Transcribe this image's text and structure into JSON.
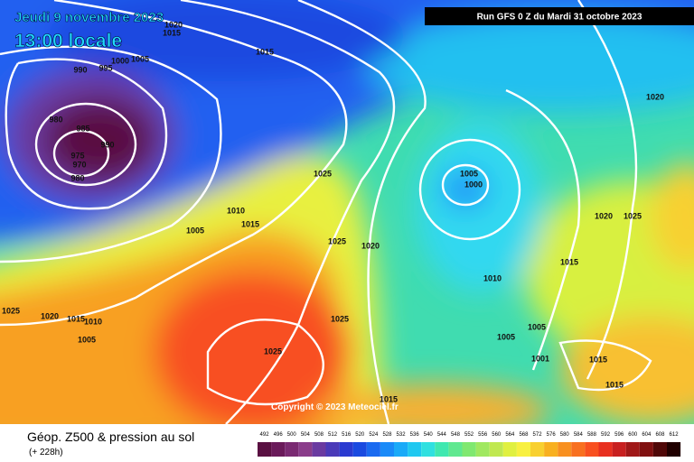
{
  "header": {
    "date": "Jeudi 9 novembre 2023",
    "time": "13:00 locale",
    "run": "Run GFS 0 Z du Mardi 31 octobre 2023"
  },
  "copyright": "Copyright © 2023 Meteociel.fr",
  "footer": {
    "title": "Géop. Z500 & pression au sol",
    "lead": "(+ 228h)"
  },
  "isobar_labels": [
    1020,
    1015,
    990,
    995,
    1000,
    1005,
    1015,
    980,
    985,
    990,
    975,
    970,
    980,
    1025,
    1010,
    1015,
    1005,
    1025,
    1020,
    1005,
    1000,
    1020,
    1020,
    1025,
    1015,
    1010,
    1025,
    1020,
    1015,
    1010,
    1005,
    1025,
    1025,
    1005,
    1005,
    1001,
    1015,
    1015,
    1015
  ],
  "legend": {
    "labels": [
      492,
      496,
      500,
      504,
      508,
      512,
      516,
      520,
      524,
      528,
      532,
      536,
      540,
      544,
      548,
      552,
      556,
      560,
      564,
      568,
      572,
      576,
      580,
      584,
      588,
      592,
      596,
      600,
      604,
      608,
      612
    ],
    "colors": [
      "#5a1042",
      "#6a1a5a",
      "#7a2a72",
      "#8a3c8a",
      "#6a3aa0",
      "#4a3ab8",
      "#2a3ad0",
      "#1a4ae0",
      "#1a6af0",
      "#1a8af8",
      "#1aaaf8",
      "#20c8f0",
      "#30e0e0",
      "#40e8b0",
      "#60e890",
      "#80e870",
      "#a0e860",
      "#c0e850",
      "#e0f040",
      "#f8f040",
      "#f8d030",
      "#f8b020",
      "#f89020",
      "#f87020",
      "#f85020",
      "#e83020",
      "#c82020",
      "#a01818",
      "#801010",
      "#500808",
      "#200000"
    ]
  }
}
